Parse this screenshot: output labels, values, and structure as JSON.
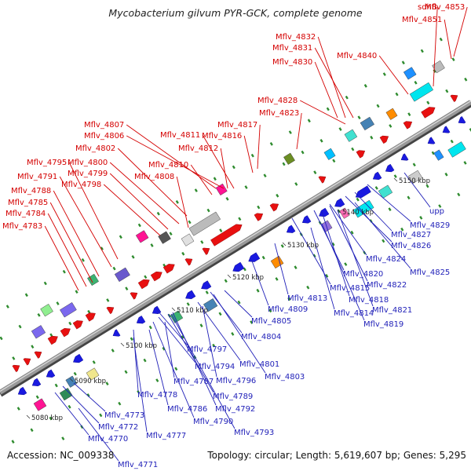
{
  "title": "Mycobacterium gilvum PYR-GCK, complete genome",
  "footer": {
    "accession": "Accession: NC_009338",
    "summary": "Topology: circular; Length: 5,619,607 bp; Genes: 5,295"
  },
  "colors": {
    "forward": "#e81010",
    "reverse": "#1a1ae0",
    "backbone": "#999999",
    "label_forward": "#d40000",
    "label_reverse": "#1f1fb8",
    "tick_dot": "#2e8b2e"
  },
  "tick_labels": [
    "5080 kbp",
    "5090 kbp",
    "5100 kbp",
    "5110 kbp",
    "5120 kbp",
    "5130 kbp",
    "5140 kbp",
    "5150 kbp"
  ],
  "forward_labels": [
    "sdhB",
    "Mflv_4853",
    "Mflv_4851",
    "Mflv_4832",
    "Mflv_4831",
    "Mflv_4830",
    "Mflv_4840",
    "Mflv_4828",
    "Mflv_4823",
    "Mflv_4807",
    "Mflv_4806",
    "Mflv_4817",
    "Mflv_4816",
    "Mflv_4811",
    "Mflv_4802",
    "Mflv_4812",
    "Mflv_4800",
    "Mflv_4795",
    "Mflv_4810",
    "Mflv_4799",
    "Mflv_4791",
    "Mflv_4808",
    "Mflv_4798",
    "Mflv_4788",
    "Mflv_4785",
    "Mflv_4784",
    "Mflv_4783"
  ],
  "reverse_labels": [
    "Mflv_4829",
    "upp",
    "Mflv_4827",
    "Mflv_4826",
    "Mflv_4824",
    "Mflv_4825",
    "Mflv_4820",
    "Mflv_4822",
    "Mflv_4815",
    "Mflv_4818",
    "Mflv_4813",
    "Mflv_4821",
    "Mflv_4814",
    "Mflv_4809",
    "Mflv_4819",
    "Mflv_4805",
    "Mflv_4804",
    "Mflv_4797",
    "Mflv_4801",
    "Mflv_4794",
    "Mflv_4796",
    "Mflv_4803",
    "Mflv_4787",
    "Mflv_4778",
    "Mflv_4789",
    "Mflv_4786",
    "Mflv_4792",
    "Mflv_4790",
    "Mflv_4773",
    "Mflv_4793",
    "Mflv_4772",
    "Mflv_4777",
    "Mflv_4770",
    "Mflv_4771"
  ]
}
